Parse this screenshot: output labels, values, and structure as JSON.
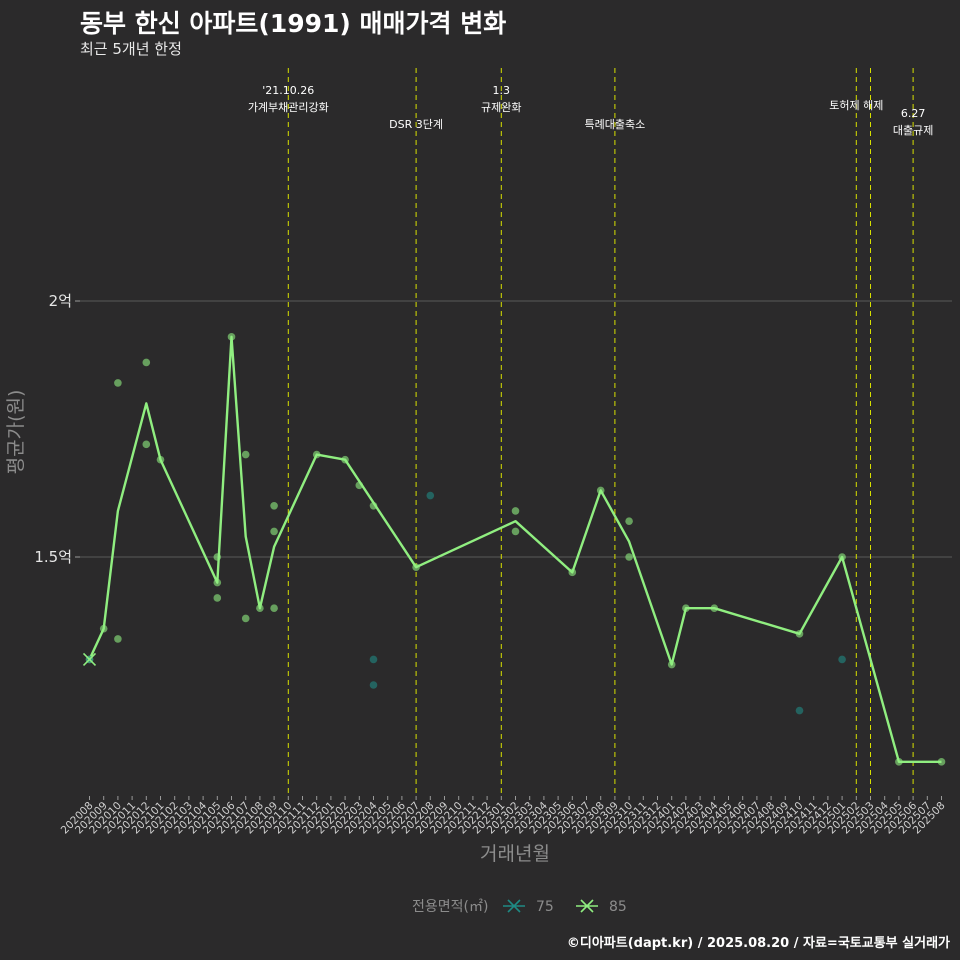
{
  "title": "동부 한신 아파트(1991) 매매가격 변화",
  "subtitle": "최근 5개년 한정",
  "caption": "©디아파트(dapt.kr) / 2025.08.20 / 자료=국토교통부 실거래가",
  "colors": {
    "background": "#2b2a2b",
    "grid": "#5a5a5a",
    "event_line": "#d7e000",
    "series_75": "#1f8a84",
    "series_85": "#90ee80"
  },
  "chart_data": {
    "type": "line",
    "xlabel": "거래년월",
    "ylabel": "평균가(원)",
    "ylim": [
      1.04,
      2.45
    ],
    "y_ticks": [
      {
        "value": 1.5,
        "label": "1.5억"
      },
      {
        "value": 2.0,
        "label": "2억"
      }
    ],
    "categories": [
      "202008",
      "202009",
      "202010",
      "202011",
      "202012",
      "202101",
      "202102",
      "202103",
      "202104",
      "202105",
      "202106",
      "202107",
      "202108",
      "202109",
      "202110",
      "202111",
      "202112",
      "202201",
      "202202",
      "202203",
      "202204",
      "202205",
      "202206",
      "202207",
      "202208",
      "202209",
      "202210",
      "202211",
      "202212",
      "202301",
      "202302",
      "202303",
      "202304",
      "202305",
      "202306",
      "202307",
      "202308",
      "202309",
      "202310",
      "202311",
      "202312",
      "202401",
      "202402",
      "202403",
      "202404",
      "202405",
      "202406",
      "202407",
      "202408",
      "202409",
      "202410",
      "202411",
      "202412",
      "202501",
      "202502",
      "202503",
      "202504",
      "202505",
      "202506",
      "202507",
      "202508"
    ],
    "legend": {
      "title": "전용면적(㎡)",
      "entries": [
        "75",
        "85"
      ],
      "placement": "bottom"
    },
    "events": [
      {
        "month": "202110",
        "lines": [
          "'21.10.26",
          "가계부채관리강화"
        ],
        "level": 0
      },
      {
        "month": "202207",
        "lines": [
          "DSR 3단계"
        ],
        "level": 2
      },
      {
        "month": "202301",
        "lines": [
          "1.3",
          "규제완화"
        ],
        "level": 0
      },
      {
        "month": "202309",
        "lines": [
          "특례대출축소"
        ],
        "level": 2
      },
      {
        "month": "202502",
        "lines": [
          "토허제 해제"
        ],
        "level": 1
      },
      {
        "month": "202503",
        "lines": [],
        "level": 1
      },
      {
        "month": "202506",
        "lines": [
          "6.27",
          "대출규제"
        ],
        "level": 3
      }
    ],
    "series": [
      {
        "name": "85",
        "line": [
          [
            "202008",
            1.3
          ],
          [
            "202009",
            1.36
          ],
          [
            "202010",
            1.59
          ],
          [
            "202012",
            1.8
          ],
          [
            "202101",
            1.69
          ],
          [
            "202105",
            1.45
          ],
          [
            "202106",
            1.93
          ],
          [
            "202107",
            1.54
          ],
          [
            "202108",
            1.4
          ],
          [
            "202109",
            1.52
          ],
          [
            "202112",
            1.7
          ],
          [
            "202202",
            1.69
          ],
          [
            "202207",
            1.48
          ],
          [
            "202302",
            1.57
          ],
          [
            "202306",
            1.47
          ],
          [
            "202308",
            1.63
          ],
          [
            "202310",
            1.53
          ],
          [
            "202401",
            1.29
          ],
          [
            "202402",
            1.4
          ],
          [
            "202404",
            1.4
          ],
          [
            "202410",
            1.35
          ],
          [
            "202501",
            1.5
          ],
          [
            "202505",
            1.1
          ],
          [
            "202508",
            1.1
          ]
        ],
        "points": [
          [
            "202008",
            1.3
          ],
          [
            "202009",
            1.36
          ],
          [
            "202010",
            1.84
          ],
          [
            "202010",
            1.34
          ],
          [
            "202012",
            1.88
          ],
          [
            "202012",
            1.72
          ],
          [
            "202101",
            1.69
          ],
          [
            "202105",
            1.5
          ],
          [
            "202105",
            1.45
          ],
          [
            "202105",
            1.42
          ],
          [
            "202106",
            1.93
          ],
          [
            "202107",
            1.7
          ],
          [
            "202107",
            1.38
          ],
          [
            "202108",
            1.4
          ],
          [
            "202109",
            1.6
          ],
          [
            "202109",
            1.55
          ],
          [
            "202109",
            1.4
          ],
          [
            "202112",
            1.7
          ],
          [
            "202202",
            1.69
          ],
          [
            "202203",
            1.64
          ],
          [
            "202204",
            1.6
          ],
          [
            "202207",
            1.48
          ],
          [
            "202302",
            1.59
          ],
          [
            "202302",
            1.55
          ],
          [
            "202306",
            1.47
          ],
          [
            "202308",
            1.63
          ],
          [
            "202310",
            1.57
          ],
          [
            "202310",
            1.5
          ],
          [
            "202401",
            1.29
          ],
          [
            "202402",
            1.4
          ],
          [
            "202404",
            1.4
          ],
          [
            "202410",
            1.35
          ],
          [
            "202501",
            1.5
          ],
          [
            "202505",
            1.1
          ],
          [
            "202508",
            1.1
          ]
        ]
      },
      {
        "name": "75",
        "line": [],
        "points": [
          [
            "202008",
            1.3
          ],
          [
            "202204",
            1.3
          ],
          [
            "202204",
            1.25
          ],
          [
            "202208",
            1.62
          ],
          [
            "202410",
            1.2
          ],
          [
            "202501",
            1.3
          ]
        ]
      }
    ]
  }
}
